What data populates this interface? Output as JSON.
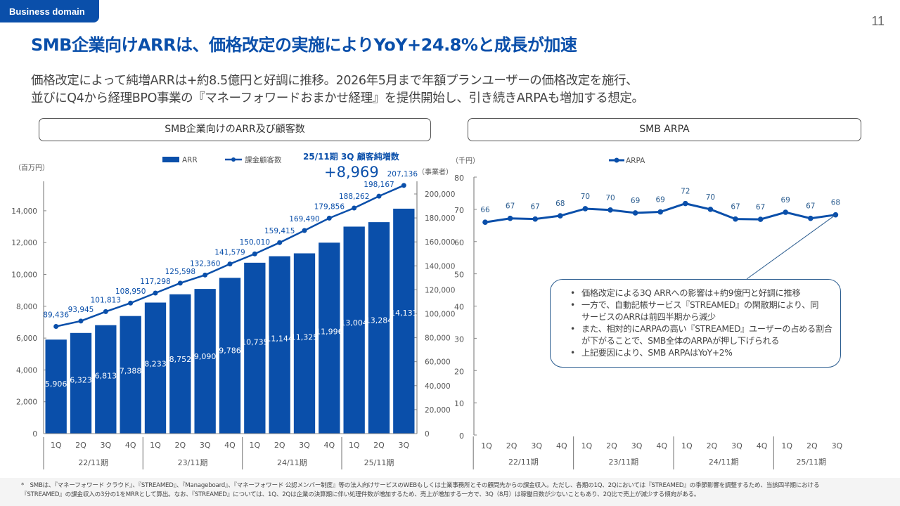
{
  "header": {
    "tag": "Business domain",
    "page_number": "11",
    "title": "SMB企業向けARRは、価格改定の実施によりYoY+24.8%と成長が加速",
    "subtitle_lines": [
      "価格改定によって純増ARRは+約8.5億円と好調に推移。2026年5月まで年額プランユーザーの価格改定を施行、",
      "並びにQ4から経理BPO事業の『マネーフォワードおまかせ経理』を提供開始し、引き続きARPAも増加する想定。"
    ]
  },
  "colors": {
    "brand": "#0A4FAA",
    "bar": "#0A4FAA",
    "line": "#0A4FAA",
    "axis": "#888888",
    "text": "#444444"
  },
  "left_panel": {
    "header": "SMB企業向けのARR及び顧客数"
  },
  "right_panel": {
    "header": "SMB ARPA"
  },
  "callout": {
    "items": [
      "価格改定による3Q ARRへの影響は+約9億円と好調に推移",
      "一方で、自動記帳サービス『STREAMED』の閑散期により、同サービスのARRは前四半期から減少",
      "また、相対的にARPAの高い『STREAMED』ユーザーの占める割合が下がることで、SMB全体のARPAが押し下げられる",
      "上記要因により、SMB ARPAはYoY+2%"
    ],
    "lines": [
      [
        "価格改定による3Q ARRへの影響は+約9億円と好調に推移"
      ],
      [
        "一方で、自動記帳サービス『STREAMED』の閑散期により、同",
        "サービスのARRは前四半期から減少"
      ],
      [
        "また、相対的にARPAの高い『STREAMED』ユーザーの占める割合",
        "が下がることで、SMB全体のARPAが押し下げられる"
      ],
      [
        "上記要因により、SMB ARPAはYoY+2%"
      ]
    ]
  },
  "footnote": {
    "lines": [
      "*　SMBは、『マネーフォワード クラウド』、『STREAMED』、『Manageboard』、『マネーフォワード 公認メンバー制度』等の法人向けサービスのWEBもしくは士業事務所とその顧問先からの課金収入。ただし、各期の1Q、2Qにおいては『STREAMED』の季節影響を調整するため、当該四半期における",
      "『STREAMED』の課金収入の3分の1をMRRとして算出。なお、『STREAMED』については、1Q、2Qは企業の決算期に伴い処理件数が増加するため、売上が増加する一方で、3Q（8月）は稼働日数が少ないこともあり、2Q比で売上が減少する傾向がある。"
    ]
  },
  "chart_data": [
    {
      "type": "bar",
      "title": "SMB企業向けのARR及び顧客数",
      "categories": [
        "1Q",
        "2Q",
        "3Q",
        "4Q",
        "1Q",
        "2Q",
        "3Q",
        "4Q",
        "1Q",
        "2Q",
        "3Q",
        "4Q",
        "1Q",
        "2Q",
        "3Q"
      ],
      "groups": [
        {
          "label": "22/11期",
          "count": 4
        },
        {
          "label": "23/11期",
          "count": 4
        },
        {
          "label": "24/11期",
          "count": 4
        },
        {
          "label": "25/11期",
          "count": 3
        }
      ],
      "series": [
        {
          "name": "ARR",
          "type": "bar",
          "axis": "left",
          "values": [
            5906,
            6323,
            6813,
            7388,
            8233,
            8752,
            9090,
            9786,
            10735,
            11144,
            11325,
            11996,
            13004,
            13284,
            14131
          ],
          "labels": [
            "5,906",
            "6,323",
            "6,813",
            "7,388",
            "8,233",
            "8,752",
            "9,090",
            "9,786",
            "10,735",
            "11,144",
            "11,325",
            "11,996",
            "13,004",
            "13,284",
            "14,131"
          ]
        },
        {
          "name": "課金顧客数",
          "type": "line",
          "axis": "right",
          "values": [
            89436,
            93945,
            101813,
            108950,
            117298,
            125598,
            132360,
            141579,
            150010,
            159415,
            169490,
            179856,
            188262,
            198167,
            207136
          ],
          "labels": [
            "89,436",
            "93,945",
            "101,813",
            "108,950",
            "117,298",
            "125,598",
            "132,360",
            "141,579",
            "150,010",
            "159,415",
            "169,490",
            "179,856",
            "188,262",
            "198,167",
            "207,136"
          ]
        }
      ],
      "y_left": {
        "label": "（百万円）",
        "range": [
          0,
          16000
        ],
        "ticks": [
          0,
          2000,
          4000,
          6000,
          8000,
          10000,
          12000,
          14000
        ],
        "tick_labels": [
          "0",
          "2,000",
          "4,000",
          "6,000",
          "8,000",
          "10,000",
          "12,000",
          "14,000"
        ]
      },
      "y_right": {
        "label": "（事業者）",
        "range": [
          0,
          210000
        ],
        "ticks": [
          0,
          20000,
          40000,
          60000,
          80000,
          100000,
          120000,
          140000,
          160000,
          180000,
          200000
        ],
        "tick_labels": [
          "0",
          "20,000",
          "40,000",
          "60,000",
          "80,000",
          "100,000",
          "120,000",
          "140,000",
          "160,000",
          "180,000",
          "200,000"
        ]
      },
      "legend": {
        "position": "top",
        "entries": [
          "ARR",
          "課金顧客数"
        ]
      },
      "annotation": {
        "title": "25/11期 3Q 顧客純増数",
        "value": "+8,969"
      },
      "grid": false
    },
    {
      "type": "line",
      "title": "SMB ARPA",
      "categories": [
        "1Q",
        "2Q",
        "3Q",
        "4Q",
        "1Q",
        "2Q",
        "3Q",
        "4Q",
        "1Q",
        "2Q",
        "3Q",
        "4Q",
        "1Q",
        "2Q",
        "3Q"
      ],
      "groups": [
        {
          "label": "22/11期",
          "count": 4
        },
        {
          "label": "23/11期",
          "count": 4
        },
        {
          "label": "24/11期",
          "count": 4
        },
        {
          "label": "25/11期",
          "count": 3
        }
      ],
      "series": [
        {
          "name": "ARPA",
          "values": [
            66,
            67.2,
            67,
            68,
            70.2,
            69.8,
            68.9,
            69.2,
            71.8,
            70,
            67,
            66.9,
            69.1,
            67.2,
            68.3
          ],
          "labels": [
            "66",
            "67",
            "67",
            "68",
            "70",
            "70",
            "69",
            "69",
            "72",
            "70",
            "67",
            "67",
            "69",
            "67",
            "68"
          ]
        }
      ],
      "y": {
        "label": "（千円）",
        "range": [
          0,
          80
        ],
        "ticks": [
          0,
          10,
          20,
          30,
          40,
          50,
          60,
          70,
          80
        ],
        "tick_labels": [
          "0",
          "10",
          "20",
          "30",
          "40",
          "50",
          "60",
          "70",
          "80"
        ]
      },
      "legend": {
        "position": "top",
        "entries": [
          "ARPA"
        ]
      },
      "grid": false
    }
  ]
}
